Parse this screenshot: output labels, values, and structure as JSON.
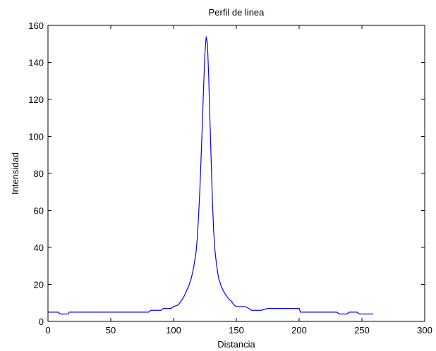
{
  "chart_data": {
    "type": "line",
    "title": "Perfil de linea",
    "xlabel": "Distancia",
    "ylabel": "Intensidad",
    "xlim": [
      0,
      300
    ],
    "ylim": [
      0,
      160
    ],
    "xticks": [
      0,
      50,
      100,
      150,
      200,
      250,
      300
    ],
    "yticks": [
      0,
      20,
      40,
      60,
      80,
      100,
      120,
      140,
      160
    ],
    "grid": false,
    "line_color": "#0000ff",
    "series": [
      {
        "x": [
          0,
          8,
          10,
          16,
          17,
          40,
          60,
          80,
          82,
          90,
          92,
          98,
          100,
          104,
          106,
          108,
          110,
          112,
          114,
          116,
          118,
          119,
          120,
          121,
          122,
          123,
          124,
          125,
          126,
          127,
          128,
          129,
          130,
          131,
          132,
          133,
          134,
          135,
          136,
          138,
          140,
          142,
          144,
          146,
          148,
          150,
          152,
          155,
          157,
          160,
          162,
          165,
          170,
          175,
          178,
          185,
          195,
          200,
          201,
          210,
          220,
          230,
          232,
          238,
          240,
          246,
          248,
          255,
          259
        ],
        "y": [
          5,
          5,
          4,
          4,
          5,
          5,
          5,
          5,
          6,
          6,
          7,
          7,
          8,
          9,
          11,
          13,
          16,
          19,
          23,
          29,
          38,
          46,
          58,
          72,
          90,
          108,
          128,
          145,
          154,
          150,
          132,
          108,
          86,
          64,
          48,
          38,
          32,
          27,
          23,
          19,
          16,
          14,
          12,
          11,
          9,
          8,
          8,
          8,
          8,
          7,
          6,
          6,
          6,
          7,
          7,
          7,
          7,
          7,
          5,
          5,
          5,
          5,
          4,
          4,
          5,
          5,
          4,
          4,
          4
        ]
      }
    ]
  }
}
